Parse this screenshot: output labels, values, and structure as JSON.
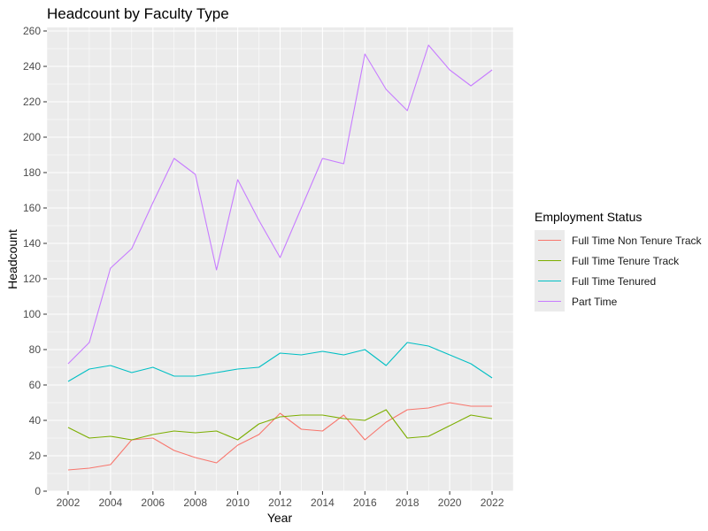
{
  "chart_data": {
    "type": "line",
    "title": "Headcount by Faculty Type",
    "xlabel": "Year",
    "ylabel": "Headcount",
    "x": [
      2002,
      2003,
      2004,
      2005,
      2006,
      2007,
      2008,
      2009,
      2010,
      2011,
      2012,
      2013,
      2014,
      2015,
      2016,
      2017,
      2018,
      2019,
      2020,
      2021,
      2022
    ],
    "xlim": [
      2001.0,
      2023.0
    ],
    "ylim": [
      0,
      262
    ],
    "xticks": [
      2002,
      2004,
      2006,
      2008,
      2010,
      2012,
      2014,
      2016,
      2018,
      2020,
      2022
    ],
    "yticks": [
      0,
      20,
      40,
      60,
      80,
      100,
      120,
      140,
      160,
      180,
      200,
      220,
      240,
      260
    ],
    "grid": true,
    "legend": {
      "title": "Employment Status",
      "position": "right"
    },
    "series": [
      {
        "name": "Full Time Non Tenure Track",
        "color": "#F8766D",
        "values": [
          12,
          13,
          15,
          29,
          30,
          23,
          19,
          16,
          26,
          32,
          44,
          35,
          34,
          43,
          29,
          39,
          46,
          47,
          50,
          48,
          48
        ]
      },
      {
        "name": "Full Time Tenure Track",
        "color": "#7CAE00",
        "values": [
          36,
          30,
          31,
          29,
          32,
          34,
          33,
          34,
          29,
          38,
          42,
          43,
          43,
          41,
          40,
          46,
          30,
          31,
          37,
          43,
          41
        ]
      },
      {
        "name": "Full Time Tenured",
        "color": "#00BFC4",
        "values": [
          62,
          69,
          71,
          67,
          70,
          65,
          65,
          67,
          69,
          70,
          78,
          77,
          79,
          77,
          80,
          71,
          84,
          82,
          77,
          72,
          64
        ]
      },
      {
        "name": "Part Time",
        "color": "#C77CFF",
        "values": [
          72,
          84,
          126,
          137,
          163,
          188,
          179,
          125,
          176,
          153,
          132,
          160,
          188,
          185,
          247,
          227,
          215,
          252,
          238,
          229,
          238
        ]
      }
    ]
  }
}
